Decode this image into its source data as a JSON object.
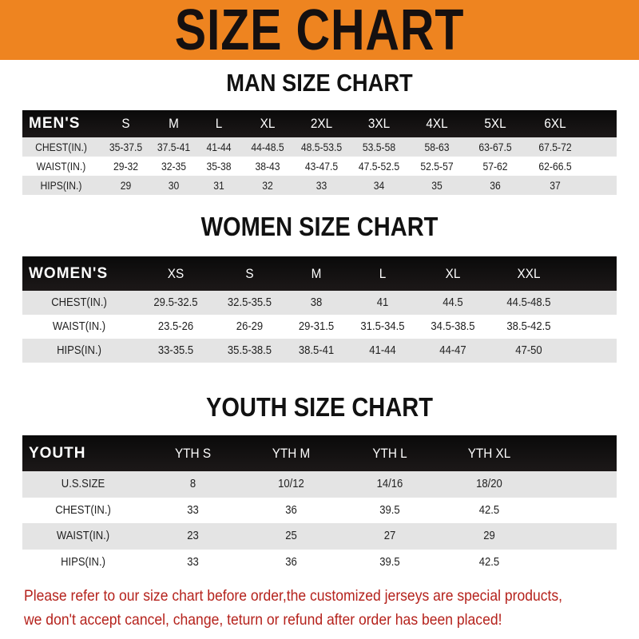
{
  "banner": {
    "title": "SIZE CHART",
    "color": "#ee8420"
  },
  "men": {
    "title": "MAN SIZE CHART",
    "header": [
      "MEN'S",
      "S",
      "M",
      "L",
      "XL",
      "2XL",
      "3XL",
      "4XL",
      "5XL",
      "6XL"
    ],
    "rows": [
      [
        "CHEST(IN.)",
        "35-37.5",
        "37.5-41",
        "41-44",
        "44-48.5",
        "48.5-53.5",
        "53.5-58",
        "58-63",
        "63-67.5",
        "67.5-72"
      ],
      [
        "WAIST(IN.)",
        "29-32",
        "32-35",
        "35-38",
        "38-43",
        "43-47.5",
        "47.5-52.5",
        "52.5-57",
        "57-62",
        "62-66.5"
      ],
      [
        "HIPS(IN.)",
        "29",
        "30",
        "31",
        "32",
        "33",
        "34",
        "35",
        "36",
        "37"
      ]
    ]
  },
  "women": {
    "title": "WOMEN SIZE CHART",
    "header": [
      "WOMEN'S",
      "XS",
      "S",
      "M",
      "L",
      "XL",
      "XXL"
    ],
    "rows": [
      [
        "CHEST(IN.)",
        "29.5-32.5",
        "32.5-35.5",
        "38",
        "41",
        "44.5",
        "44.5-48.5"
      ],
      [
        "WAIST(IN.)",
        "23.5-26",
        "26-29",
        "29-31.5",
        "31.5-34.5",
        "34.5-38.5",
        "38.5-42.5"
      ],
      [
        "HIPS(IN.)",
        "33-35.5",
        "35.5-38.5",
        "38.5-41",
        "41-44",
        "44-47",
        "47-50"
      ]
    ]
  },
  "youth": {
    "title": "YOUTH SIZE CHART",
    "header": [
      "YOUTH",
      "YTH S",
      "YTH M",
      "YTH L",
      "YTH XL"
    ],
    "rows": [
      [
        "U.S.SIZE",
        "8",
        "10/12",
        "14/16",
        "18/20"
      ],
      [
        "CHEST(IN.)",
        "33",
        "36",
        "39.5",
        "42.5"
      ],
      [
        "WAIST(IN.)",
        "23",
        "25",
        "27",
        "29"
      ],
      [
        "HIPS(IN.)",
        "33",
        "36",
        "39.5",
        "42.5"
      ]
    ]
  },
  "footer": {
    "line1": "Please refer to our size chart before order,the customized jerseys are special products,",
    "line2": "we don't accept cancel, change, teturn or refund after order has been placed!",
    "color": "#b5221c"
  }
}
